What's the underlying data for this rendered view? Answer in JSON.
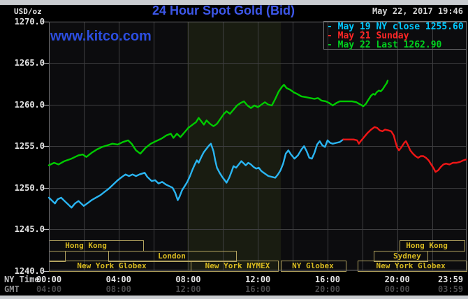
{
  "header": {
    "title": "24 Hour Spot Gold (Bid)",
    "timestamp": "May 22, 2017 19:46",
    "watermark": "www.kitco.com",
    "y_axis_unit": "USD/oz"
  },
  "legend": {
    "items": [
      {
        "label": "- May 19 NY close 1255.60",
        "color": "#00c8ff"
      },
      {
        "label": "- May 21 Sunday",
        "color": "#ff2626"
      },
      {
        "label": "- May 22 Last 1262.90",
        "color": "#00d21e"
      }
    ]
  },
  "axes": {
    "y_tick_labels": [
      "1270.0",
      "1265.0",
      "1260.0",
      "1255.0",
      "1250.0",
      "1245.0",
      "1240.0"
    ],
    "y_tick_values": [
      1270,
      1265,
      1260,
      1255,
      1250,
      1245,
      1240
    ],
    "tick_hours": [
      0,
      4,
      8,
      12,
      16,
      20,
      23.983
    ],
    "rows": [
      {
        "label": "NY Time",
        "ticks": [
          "00:00",
          "04:00",
          "08:00",
          "12:00",
          "16:00",
          "20:00",
          "23:59"
        ],
        "bright": true
      },
      {
        "label": "GMT",
        "ticks": [
          "04:00",
          "08:00",
          "12:00",
          "16:00",
          "20:00",
          "00:00",
          "03:59"
        ],
        "bright": false
      }
    ]
  },
  "sessions": {
    "shade_band": {
      "start_hour": 7.94,
      "end_hour": 13.32
    },
    "boxes": [
      {
        "row": 0,
        "start_hour": 0,
        "end_hour": 5.41,
        "label": "Hong Kong",
        "label_center_hour": 2.13
      },
      {
        "row": 0,
        "start_hour": 20.13,
        "end_hour": 23.86,
        "label": "Hong Kong",
        "label_center_hour": 21.7
      },
      {
        "row": 1,
        "start_hour": 0,
        "end_hour": 0.92,
        "label": "",
        "label_center_hour": 0.45
      },
      {
        "row": 1,
        "start_hour": 3.41,
        "end_hour": 10.75,
        "label": "London",
        "label_center_hour": 7.06
      },
      {
        "row": 1,
        "start_hour": 18.65,
        "end_hour": 21.74,
        "label": "Sydney",
        "label_center_hour": 20.57
      },
      {
        "row": 2,
        "start_hour": 0,
        "end_hour": 8.14,
        "label": "New York Globex",
        "label_center_hour": 3.61
      },
      {
        "row": 2,
        "start_hour": 8.14,
        "end_hour": 13.16,
        "label": "New York NYMEX",
        "label_center_hour": 10.83
      },
      {
        "row": 2,
        "start_hour": 13.32,
        "end_hour": 17.05,
        "label": "NY Globex",
        "label_center_hour": 15.16
      },
      {
        "row": 2,
        "start_hour": 17.73,
        "end_hour": 23.98,
        "label": "New York Globex",
        "label_center_hour": 20.78
      }
    ]
  },
  "chart_data": {
    "type": "line",
    "title": "24 Hour Spot Gold (Bid)",
    "xlabel": "NY Time (hours)",
    "ylabel": "USD/oz",
    "xlim": [
      0,
      23.983
    ],
    "ylim": [
      1240,
      1270
    ],
    "grid": true,
    "legend_position": "top-right",
    "series": [
      {
        "name": "May 19 NY close 1255.60",
        "color": "#2ab5f2",
        "points": [
          [
            0,
            1248.8
          ],
          [
            0.2,
            1248.4
          ],
          [
            0.35,
            1248.1
          ],
          [
            0.5,
            1248.6
          ],
          [
            0.7,
            1248.8
          ],
          [
            0.9,
            1248.4
          ],
          [
            1.1,
            1248.0
          ],
          [
            1.3,
            1247.6
          ],
          [
            1.5,
            1248.1
          ],
          [
            1.7,
            1248.4
          ],
          [
            1.9,
            1248.0
          ],
          [
            2.0,
            1247.8
          ],
          [
            2.2,
            1248.1
          ],
          [
            2.45,
            1248.5
          ],
          [
            2.7,
            1248.8
          ],
          [
            2.95,
            1249.1
          ],
          [
            3.2,
            1249.5
          ],
          [
            3.45,
            1249.9
          ],
          [
            3.7,
            1250.4
          ],
          [
            3.95,
            1250.9
          ],
          [
            4.2,
            1251.3
          ],
          [
            4.4,
            1251.6
          ],
          [
            4.6,
            1251.4
          ],
          [
            4.8,
            1251.6
          ],
          [
            5.0,
            1251.4
          ],
          [
            5.2,
            1251.6
          ],
          [
            5.5,
            1251.8
          ],
          [
            5.65,
            1251.3
          ],
          [
            5.9,
            1250.8
          ],
          [
            6.1,
            1250.9
          ],
          [
            6.3,
            1250.5
          ],
          [
            6.5,
            1250.7
          ],
          [
            6.7,
            1250.4
          ],
          [
            6.9,
            1250.2
          ],
          [
            7.1,
            1250.0
          ],
          [
            7.25,
            1249.4
          ],
          [
            7.4,
            1248.5
          ],
          [
            7.5,
            1248.9
          ],
          [
            7.65,
            1249.7
          ],
          [
            7.8,
            1250.2
          ],
          [
            7.95,
            1250.7
          ],
          [
            8.1,
            1251.4
          ],
          [
            8.25,
            1252.2
          ],
          [
            8.4,
            1252.9
          ],
          [
            8.5,
            1253.3
          ],
          [
            8.6,
            1253.0
          ],
          [
            8.75,
            1253.7
          ],
          [
            8.9,
            1254.3
          ],
          [
            9.05,
            1254.7
          ],
          [
            9.2,
            1255.1
          ],
          [
            9.3,
            1255.3
          ],
          [
            9.45,
            1254.4
          ],
          [
            9.55,
            1253.3
          ],
          [
            9.65,
            1252.4
          ],
          [
            9.8,
            1251.8
          ],
          [
            9.95,
            1251.3
          ],
          [
            10.1,
            1250.9
          ],
          [
            10.2,
            1250.6
          ],
          [
            10.35,
            1251.2
          ],
          [
            10.5,
            1252.0
          ],
          [
            10.6,
            1252.6
          ],
          [
            10.75,
            1252.4
          ],
          [
            10.9,
            1252.8
          ],
          [
            11.05,
            1253.2
          ],
          [
            11.15,
            1253.0
          ],
          [
            11.3,
            1252.7
          ],
          [
            11.45,
            1253.0
          ],
          [
            11.6,
            1252.8
          ],
          [
            11.75,
            1252.5
          ],
          [
            11.9,
            1252.3
          ],
          [
            12.05,
            1252.4
          ],
          [
            12.2,
            1252.0
          ],
          [
            12.4,
            1251.7
          ],
          [
            12.6,
            1251.4
          ],
          [
            12.8,
            1251.3
          ],
          [
            13.0,
            1251.2
          ],
          [
            13.15,
            1251.6
          ],
          [
            13.3,
            1252.1
          ],
          [
            13.45,
            1252.9
          ],
          [
            13.6,
            1254.1
          ],
          [
            13.75,
            1254.5
          ],
          [
            13.9,
            1254.0
          ],
          [
            14.1,
            1253.5
          ],
          [
            14.3,
            1253.9
          ],
          [
            14.5,
            1254.6
          ],
          [
            14.65,
            1255.0
          ],
          [
            14.8,
            1254.4
          ],
          [
            14.95,
            1253.6
          ],
          [
            15.1,
            1253.5
          ],
          [
            15.25,
            1254.2
          ],
          [
            15.4,
            1255.2
          ],
          [
            15.55,
            1255.6
          ],
          [
            15.7,
            1255.1
          ],
          [
            15.85,
            1254.9
          ],
          [
            16.0,
            1255.7
          ],
          [
            16.15,
            1255.4
          ],
          [
            16.3,
            1255.3
          ],
          [
            16.5,
            1255.4
          ],
          [
            16.7,
            1255.5
          ],
          [
            16.9,
            1255.8
          ]
        ]
      },
      {
        "name": "May 21 Sunday",
        "color": "#ef1616",
        "points": [
          [
            16.9,
            1255.8
          ],
          [
            17.2,
            1255.8
          ],
          [
            17.5,
            1255.8
          ],
          [
            17.7,
            1255.7
          ],
          [
            17.8,
            1255.3
          ],
          [
            17.9,
            1255.6
          ],
          [
            18.1,
            1256.1
          ],
          [
            18.3,
            1256.6
          ],
          [
            18.5,
            1257.0
          ],
          [
            18.7,
            1257.3
          ],
          [
            18.85,
            1257.2
          ],
          [
            19.0,
            1256.9
          ],
          [
            19.15,
            1256.8
          ],
          [
            19.3,
            1257.0
          ],
          [
            19.5,
            1256.9
          ],
          [
            19.65,
            1256.8
          ],
          [
            19.8,
            1256.3
          ],
          [
            19.9,
            1255.5
          ],
          [
            20.0,
            1254.8
          ],
          [
            20.1,
            1254.5
          ],
          [
            20.25,
            1254.9
          ],
          [
            20.4,
            1255.4
          ],
          [
            20.5,
            1255.6
          ],
          [
            20.6,
            1255.2
          ],
          [
            20.75,
            1254.5
          ],
          [
            20.9,
            1254.1
          ],
          [
            21.05,
            1253.8
          ],
          [
            21.2,
            1253.6
          ],
          [
            21.35,
            1253.8
          ],
          [
            21.5,
            1253.8
          ],
          [
            21.65,
            1253.6
          ],
          [
            21.8,
            1253.3
          ],
          [
            21.95,
            1252.8
          ],
          [
            22.1,
            1252.3
          ],
          [
            22.2,
            1251.9
          ],
          [
            22.35,
            1252.1
          ],
          [
            22.5,
            1252.5
          ],
          [
            22.65,
            1252.8
          ],
          [
            22.8,
            1252.9
          ],
          [
            23.0,
            1252.8
          ],
          [
            23.2,
            1253.0
          ],
          [
            23.4,
            1253.0
          ],
          [
            23.6,
            1253.1
          ],
          [
            23.8,
            1253.3
          ],
          [
            23.95,
            1253.4
          ]
        ]
      },
      {
        "name": "May 22 Last 1262.90",
        "color": "#00cb00",
        "points": [
          [
            0,
            1252.7
          ],
          [
            0.3,
            1253.0
          ],
          [
            0.55,
            1252.8
          ],
          [
            0.9,
            1253.2
          ],
          [
            1.3,
            1253.5
          ],
          [
            1.7,
            1253.9
          ],
          [
            1.95,
            1254.0
          ],
          [
            2.15,
            1253.7
          ],
          [
            2.45,
            1254.2
          ],
          [
            2.75,
            1254.6
          ],
          [
            3.05,
            1254.9
          ],
          [
            3.35,
            1255.1
          ],
          [
            3.65,
            1255.3
          ],
          [
            3.95,
            1255.2
          ],
          [
            4.25,
            1255.5
          ],
          [
            4.55,
            1255.7
          ],
          [
            4.75,
            1255.3
          ],
          [
            5.0,
            1254.5
          ],
          [
            5.25,
            1254.1
          ],
          [
            5.55,
            1254.8
          ],
          [
            5.85,
            1255.3
          ],
          [
            6.15,
            1255.6
          ],
          [
            6.45,
            1255.9
          ],
          [
            6.75,
            1256.3
          ],
          [
            7.0,
            1256.5
          ],
          [
            7.15,
            1256.0
          ],
          [
            7.35,
            1256.5
          ],
          [
            7.55,
            1256.1
          ],
          [
            7.8,
            1256.7
          ],
          [
            8.0,
            1257.2
          ],
          [
            8.25,
            1257.6
          ],
          [
            8.45,
            1257.9
          ],
          [
            8.6,
            1258.4
          ],
          [
            8.75,
            1258.0
          ],
          [
            8.9,
            1257.6
          ],
          [
            9.05,
            1258.1
          ],
          [
            9.25,
            1257.7
          ],
          [
            9.45,
            1257.4
          ],
          [
            9.65,
            1257.7
          ],
          [
            9.85,
            1258.3
          ],
          [
            10.05,
            1258.9
          ],
          [
            10.2,
            1259.2
          ],
          [
            10.4,
            1258.9
          ],
          [
            10.6,
            1259.4
          ],
          [
            10.8,
            1259.9
          ],
          [
            11.0,
            1260.2
          ],
          [
            11.2,
            1260.4
          ],
          [
            11.4,
            1259.9
          ],
          [
            11.6,
            1259.6
          ],
          [
            11.8,
            1259.9
          ],
          [
            12.0,
            1259.7
          ],
          [
            12.2,
            1260.0
          ],
          [
            12.4,
            1260.3
          ],
          [
            12.6,
            1260.0
          ],
          [
            12.8,
            1259.9
          ],
          [
            13.0,
            1260.7
          ],
          [
            13.2,
            1261.6
          ],
          [
            13.4,
            1262.2
          ],
          [
            13.5,
            1262.4
          ],
          [
            13.65,
            1262.0
          ],
          [
            13.85,
            1261.8
          ],
          [
            14.05,
            1261.5
          ],
          [
            14.25,
            1261.3
          ],
          [
            14.5,
            1261.0
          ],
          [
            14.75,
            1260.9
          ],
          [
            15.0,
            1260.8
          ],
          [
            15.25,
            1260.7
          ],
          [
            15.45,
            1260.8
          ],
          [
            15.65,
            1260.5
          ],
          [
            15.9,
            1260.4
          ],
          [
            16.1,
            1260.2
          ],
          [
            16.3,
            1259.9
          ],
          [
            16.5,
            1260.2
          ],
          [
            16.7,
            1260.4
          ],
          [
            17.0,
            1260.4
          ],
          [
            17.4,
            1260.4
          ],
          [
            17.65,
            1260.3
          ],
          [
            17.9,
            1260.0
          ],
          [
            18.05,
            1259.8
          ],
          [
            18.2,
            1260.1
          ],
          [
            18.35,
            1260.6
          ],
          [
            18.5,
            1261.1
          ],
          [
            18.62,
            1261.3
          ],
          [
            18.72,
            1261.2
          ],
          [
            18.82,
            1261.5
          ],
          [
            18.95,
            1261.7
          ],
          [
            19.05,
            1261.6
          ],
          [
            19.18,
            1261.9
          ],
          [
            19.3,
            1262.3
          ],
          [
            19.4,
            1262.6
          ],
          [
            19.45,
            1262.9
          ]
        ]
      }
    ]
  },
  "palette": {
    "background": "#000000",
    "page_strip": "#c9ccd0",
    "plot_bg": "#0c0c0e",
    "session_shade": "#191c11",
    "grid": "#3e3e40",
    "frame": "#6f6f71",
    "tick": "#c0c0c2",
    "axis_text": "#e6e6e6",
    "axis_text_dim": "#4b4b4d",
    "axis_row_label": "#c4c4c6",
    "axis_row_label_dim": "#8f8f91",
    "title": "#3d57e8",
    "watermark": "#2c4ee0",
    "timestamp": "#d4d4d4",
    "session_border": "#b3a35f",
    "session_text": "#d8ba20"
  }
}
